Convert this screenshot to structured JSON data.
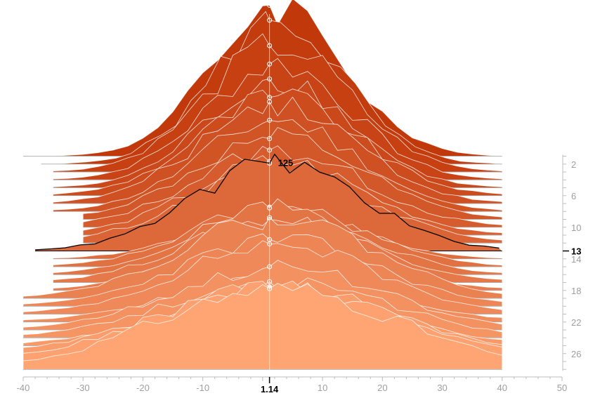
{
  "chart_data": {
    "type": "area",
    "subtype": "ridgeline",
    "title": "",
    "xlabel": "",
    "ylabel": "",
    "xlim": [
      -40,
      50
    ],
    "x_ticks": [
      -40,
      -30,
      -20,
      -10,
      10,
      20,
      30,
      40,
      50
    ],
    "row_ticks": [
      2,
      6,
      10,
      14,
      18,
      22,
      26
    ],
    "highlight": {
      "row": 13,
      "row_label": "13",
      "x": 1.14,
      "x_label": "1.14",
      "peak_value": 125,
      "peak_label": "125"
    },
    "peak_x": 1.14,
    "peak_heights": [
      215,
      205,
      180,
      165,
      155,
      140,
      145,
      130,
      115,
      110,
      105,
      100,
      125,
      70,
      85,
      95,
      90,
      75,
      115,
      95,
      100,
      65,
      90,
      80,
      70,
      95,
      105,
      115
    ],
    "widths": [
      11,
      11,
      12,
      12,
      12,
      13,
      13,
      13,
      14,
      14,
      14,
      15,
      14,
      13,
      14,
      14,
      15,
      15,
      16,
      16,
      16,
      17,
      17,
      18,
      18,
      19,
      20,
      20
    ],
    "spans": [
      [
        -40,
        40
      ],
      [
        -37,
        40
      ],
      [
        -35,
        40
      ],
      [
        -35,
        40
      ],
      [
        -35,
        40
      ],
      [
        -35,
        40
      ],
      [
        -35,
        40
      ],
      [
        -35,
        40
      ],
      [
        -30,
        40
      ],
      [
        -30,
        40
      ],
      [
        -30,
        40
      ],
      [
        -30,
        40
      ],
      [
        -38,
        40
      ],
      [
        -35,
        40
      ],
      [
        -35,
        40
      ],
      [
        -35,
        40
      ],
      [
        -35,
        40
      ],
      [
        -35,
        40
      ],
      [
        -40,
        40
      ],
      [
        -40,
        40
      ],
      [
        -40,
        40
      ],
      [
        -40,
        40
      ],
      [
        -40,
        40
      ],
      [
        -40,
        40
      ],
      [
        -40,
        40
      ],
      [
        -40,
        40
      ],
      [
        -40,
        40
      ],
      [
        -40,
        40
      ]
    ],
    "colors": {
      "back": "#c1380a",
      "front": "#ffa574",
      "outline": "#ffffff",
      "highlight": "#000000",
      "axis": "#bdbdbd",
      "baseline": "#9e9e9e"
    }
  }
}
